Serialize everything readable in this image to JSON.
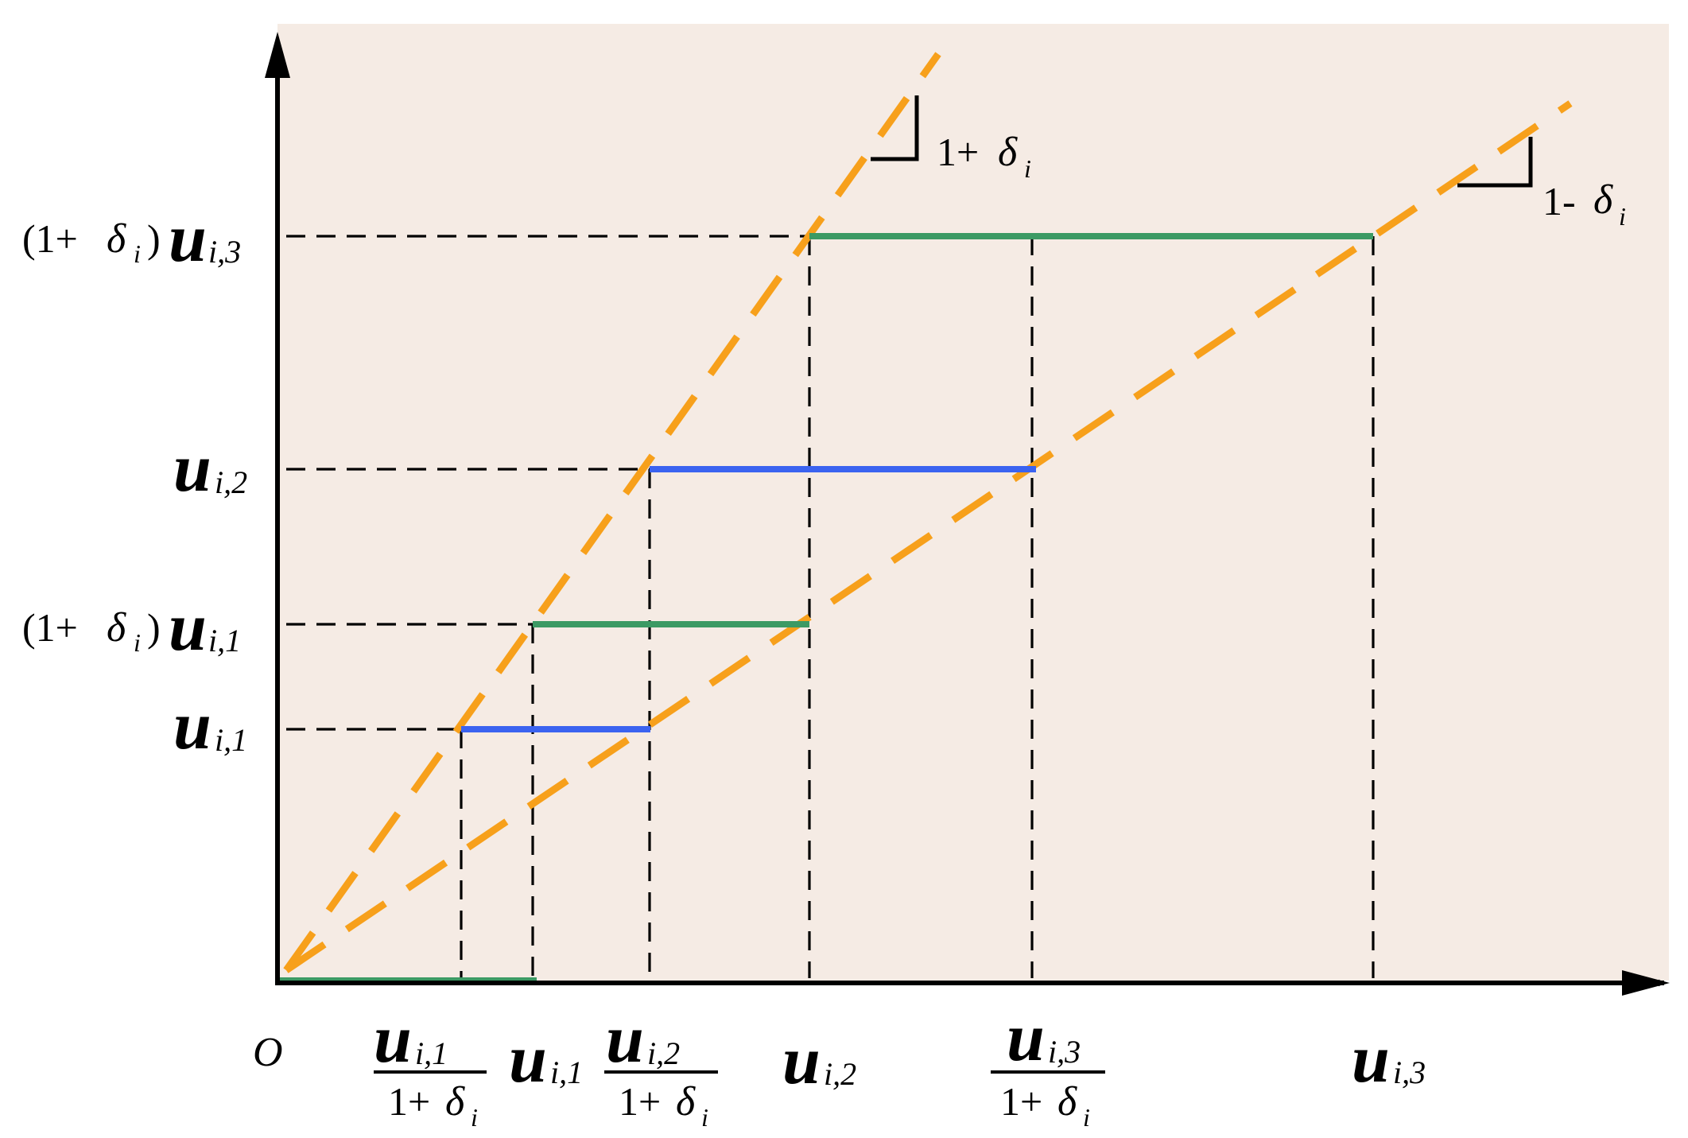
{
  "colors": {
    "plot_background": "#f5ebe4",
    "axis": "#000000",
    "guide_dash": "#000000",
    "slope_line": "#f7a01b",
    "step_green": "#3c9a64",
    "step_blue": "#3b63f0"
  },
  "origin_label": "O",
  "y_labels": {
    "u_i3_scaled": {
      "prefix": "(1+",
      "delta": "δ",
      "delta_sub": "i",
      "close": ")",
      "u": "u",
      "sub": "i,3"
    },
    "u_i2": {
      "u": "u",
      "sub": "i,2"
    },
    "u_i1_scaled": {
      "prefix": "(1+",
      "delta": "δ",
      "delta_sub": "i",
      "close": ")",
      "u": "u",
      "sub": "i,1"
    },
    "u_i1": {
      "u": "u",
      "sub": "i,1"
    }
  },
  "x_labels": {
    "u_i1_over": {
      "u": "u",
      "sub": "i,1",
      "den_prefix": "1+",
      "delta": "δ",
      "delta_sub": "i"
    },
    "u_i1": {
      "u": "u",
      "sub": "i,1"
    },
    "u_i2_over": {
      "u": "u",
      "sub": "i,2",
      "den_prefix": "1+",
      "delta": "δ",
      "delta_sub": "i"
    },
    "u_i2": {
      "u": "u",
      "sub": "i,2"
    },
    "u_i3_over": {
      "u": "u",
      "sub": "i,3",
      "den_prefix": "1+",
      "delta": "δ",
      "delta_sub": "i"
    },
    "u_i3": {
      "u": "u",
      "sub": "i,3"
    }
  },
  "slope_labels": {
    "upper": {
      "prefix": "1+",
      "delta": "δ",
      "delta_sub": "i"
    },
    "lower": {
      "prefix": "1- ",
      "delta": "δ",
      "delta_sub": "i"
    }
  }
}
